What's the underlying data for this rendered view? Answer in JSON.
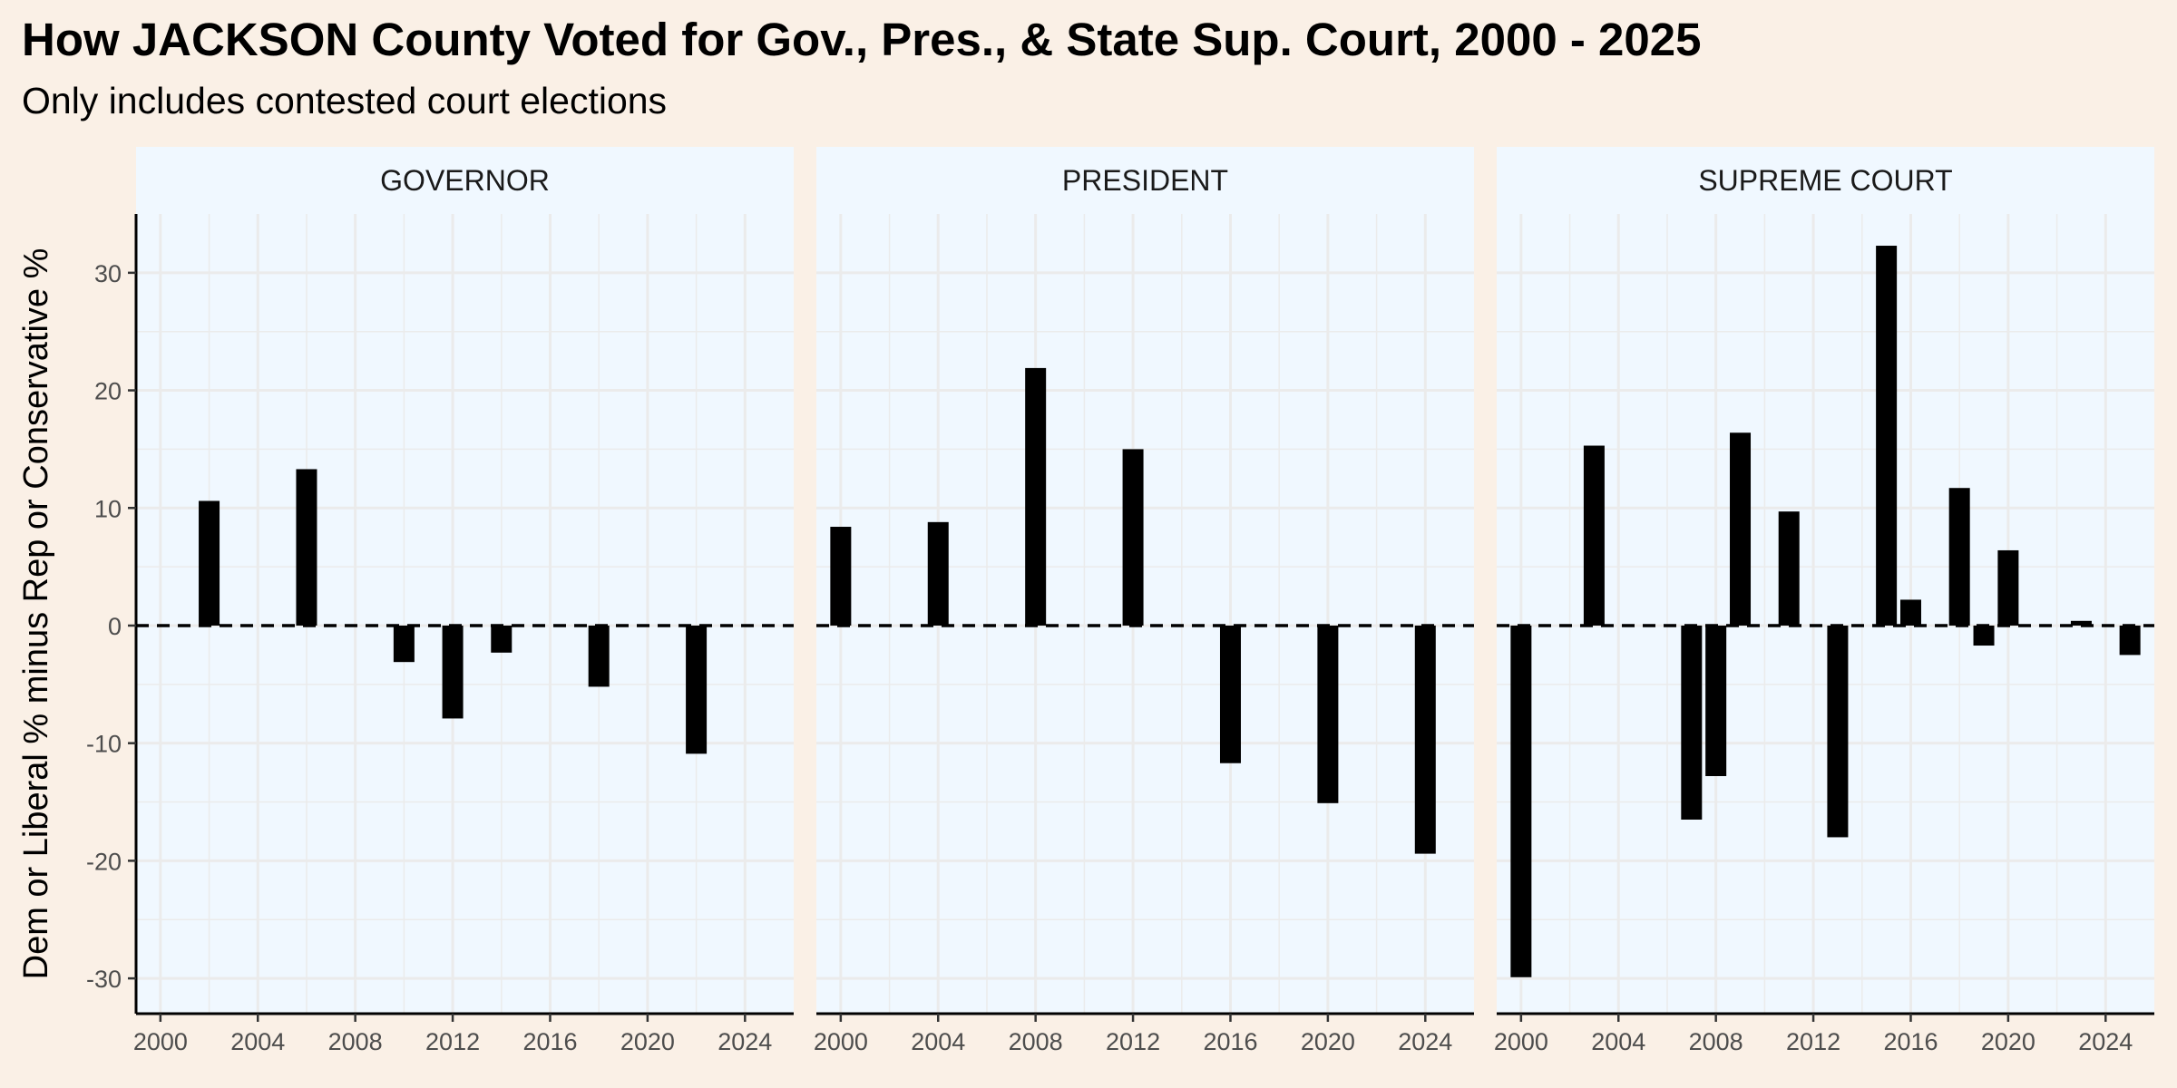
{
  "title": "How JACKSON County Voted for Gov., Pres., & State Sup. Court, 2000 - 2025",
  "subtitle": "Only includes contested court elections",
  "colors": {
    "page_background": "#faf0e6",
    "panel_background": "#f0f8ff",
    "strip_background": "#f0f8ff",
    "bar": "#000000",
    "grid": "#ebebeb",
    "zero_line": "#000000"
  },
  "chart_data": {
    "type": "bar",
    "facet_layout": "three panels side by side, shared y axis",
    "ylabel": "Dem or Liberal % minus Rep or Conservative %",
    "xlabel": "",
    "ylim": [
      -33,
      35
    ],
    "xlim": [
      1999,
      2026
    ],
    "y_ticks": [
      -30,
      -20,
      -10,
      0,
      10,
      20,
      30
    ],
    "y_tick_labels": [
      "-30",
      "-20",
      "-10",
      "0",
      "10",
      "20",
      "30"
    ],
    "x_ticks": [
      2000,
      2004,
      2008,
      2012,
      2016,
      2020,
      2024
    ],
    "x_tick_labels": [
      "2000",
      "2004",
      "2008",
      "2012",
      "2016",
      "2020",
      "2024"
    ],
    "reference_line": {
      "y": 0,
      "style": "dashed"
    },
    "grid": true,
    "legend": "none",
    "panels": [
      {
        "name": "GOVERNOR",
        "points": [
          {
            "x": 2002,
            "y": 10.6
          },
          {
            "x": 2006,
            "y": 13.3
          },
          {
            "x": 2010,
            "y": -3.1
          },
          {
            "x": 2012,
            "y": -7.9
          },
          {
            "x": 2014,
            "y": -2.3
          },
          {
            "x": 2018,
            "y": -5.2
          },
          {
            "x": 2022,
            "y": -10.9
          }
        ]
      },
      {
        "name": "PRESIDENT",
        "points": [
          {
            "x": 2000,
            "y": 8.4
          },
          {
            "x": 2004,
            "y": 8.8
          },
          {
            "x": 2008,
            "y": 21.9
          },
          {
            "x": 2012,
            "y": 15.0
          },
          {
            "x": 2016,
            "y": -11.7
          },
          {
            "x": 2020,
            "y": -15.1
          },
          {
            "x": 2024,
            "y": -19.4
          }
        ]
      },
      {
        "name": "SUPREME COURT",
        "points": [
          {
            "x": 2000,
            "y": -29.9
          },
          {
            "x": 2003,
            "y": 15.3
          },
          {
            "x": 2007,
            "y": -16.5
          },
          {
            "x": 2008,
            "y": -12.8
          },
          {
            "x": 2009,
            "y": 16.4
          },
          {
            "x": 2011,
            "y": 9.7
          },
          {
            "x": 2013,
            "y": -18.0
          },
          {
            "x": 2015,
            "y": 32.3
          },
          {
            "x": 2016,
            "y": 2.2
          },
          {
            "x": 2018,
            "y": 11.7
          },
          {
            "x": 2019,
            "y": -1.7
          },
          {
            "x": 2020,
            "y": 6.4
          },
          {
            "x": 2023,
            "y": 0.4
          },
          {
            "x": 2025,
            "y": -2.5
          }
        ]
      }
    ]
  }
}
